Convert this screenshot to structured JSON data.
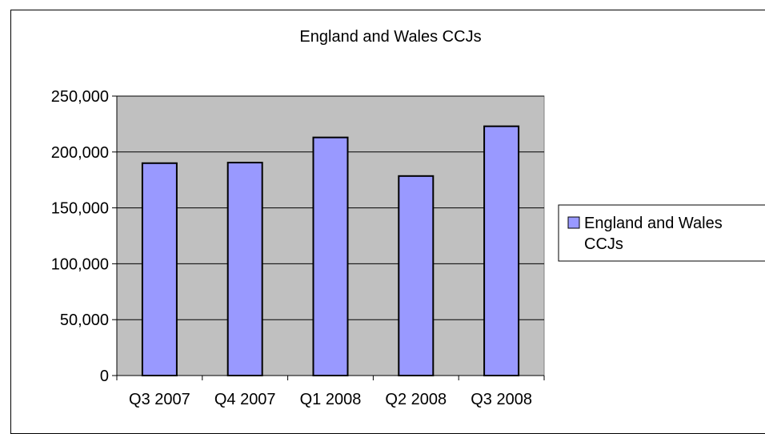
{
  "chart_data": {
    "type": "bar",
    "title": "England and Wales CCJs",
    "xlabel": "",
    "ylabel": "",
    "categories": [
      "Q3 2007",
      "Q4 2007",
      "Q1 2008",
      "Q2 2008",
      "Q3 2008"
    ],
    "series": [
      {
        "name": "England and Wales CCJs",
        "values": [
          190000,
          190500,
          213000,
          178500,
          223000
        ]
      }
    ],
    "ylim": [
      0,
      250000
    ],
    "yticks": [
      "0",
      "50,000",
      "100,000",
      "150,000",
      "200,000",
      "250,000"
    ],
    "grid": true,
    "legend": {
      "placement": "right",
      "lines": [
        "England and Wales",
        "CCJs"
      ]
    },
    "colors": {
      "bar_fill": "#9999ff",
      "bar_stroke": "#000000",
      "plot_background": "#c0c0c0",
      "gridline": "#000000"
    }
  }
}
